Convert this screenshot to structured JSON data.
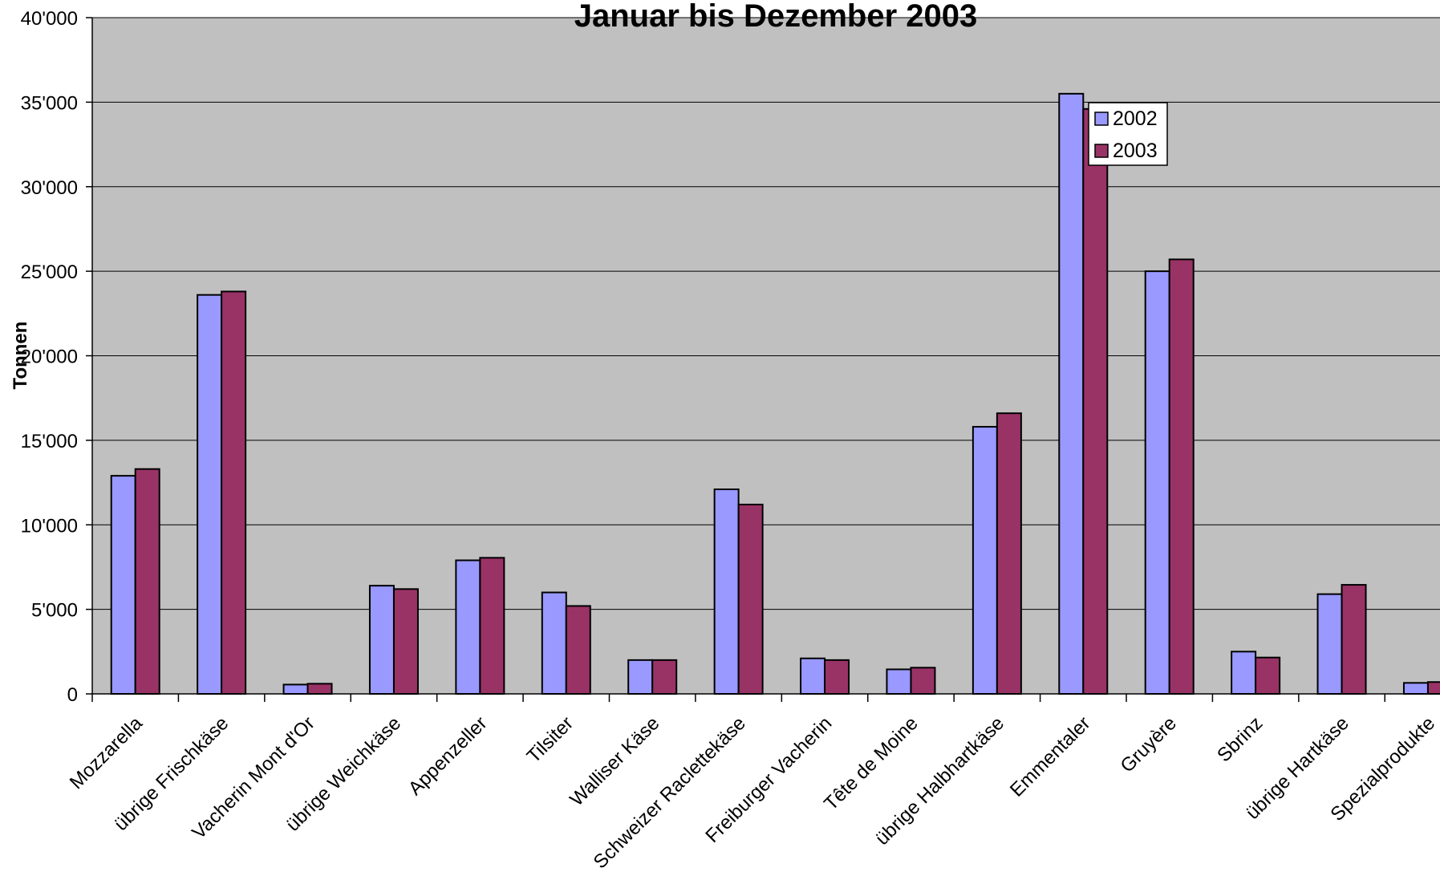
{
  "chart_data": {
    "type": "bar",
    "title": "Januar bis Dezember 2003",
    "xlabel": "",
    "ylabel": "Tonnen",
    "ylim": [
      0,
      40000
    ],
    "yticks": [
      0,
      5000,
      10000,
      15000,
      20000,
      25000,
      30000,
      35000,
      40000
    ],
    "ytick_labels": [
      "0",
      "5'000",
      "10'000",
      "15'000",
      "20'000",
      "25'000",
      "30'000",
      "35'000",
      "40'000"
    ],
    "grid": true,
    "legend": "top-right",
    "categories": [
      "Mozzarella",
      "übrige Frischkäse",
      "Vacherin Mont d'Or",
      "übrige Weichkäse",
      "Appenzeller",
      "Tilsiter",
      "Walliser Käse",
      "Schweizer Raclettekäse",
      "Freiburger Vacherin",
      "Tête de Moine",
      "übrige Halbhartkäse",
      "Emmentaler",
      "Gruyère",
      "Sbrinz",
      "übrige Hartkäse",
      "Spezialprodukte"
    ],
    "series": [
      {
        "name": "2002",
        "color": "#9999ff",
        "values": [
          12900,
          23600,
          550,
          6400,
          7900,
          6000,
          2000,
          12100,
          2100,
          1450,
          15800,
          35500,
          25000,
          2500,
          5900,
          650
        ]
      },
      {
        "name": "2003",
        "color": "#993366",
        "values": [
          13300,
          23800,
          600,
          6200,
          8050,
          5200,
          2000,
          11200,
          2000,
          1550,
          16600,
          34600,
          25700,
          2150,
          6450,
          700
        ]
      }
    ]
  },
  "colors": {
    "plot_background": "#c0c0c0",
    "gridline": "#000000",
    "bar_outline": "#000000"
  }
}
